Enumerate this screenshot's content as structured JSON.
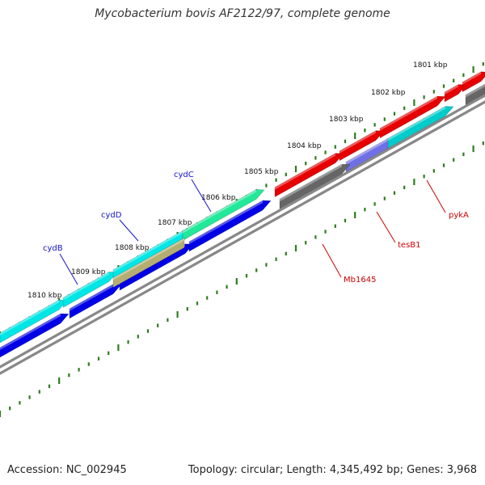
{
  "title": "Mycobacterium bovis AF2122/97, complete genome",
  "accession": "Accession: NC_002945",
  "genome_stats": "Topology: circular; Length: 4,345,492 bp; Genes: 3,968",
  "colors": {
    "backbone": "#888888",
    "tick": "#2e7d1c",
    "gene_label_forward": "#1414c8",
    "gene_label_reverse": "#cc0000",
    "kbp_label": "#111111"
  },
  "kbp_labels": [
    "1801 kbp",
    "1802 kbp",
    "1803 kbp",
    "1804 kbp",
    "1805 kbp",
    "1806 kbp",
    "1807 kbp",
    "1808 kbp",
    "1809 kbp",
    "1810 kbp"
  ],
  "gene_labels": [
    {
      "name": "cydC",
      "color": "#1414c8"
    },
    {
      "name": "cydD",
      "color": "#1414c8"
    },
    {
      "name": "cydB",
      "color": "#1414c8"
    },
    {
      "name": "pykA",
      "color": "#cc0000"
    },
    {
      "name": "tesB1",
      "color": "#cc0000"
    },
    {
      "name": "Mb1645",
      "color": "#cc0000"
    }
  ],
  "features": [
    {
      "color": "#0000e6",
      "strand": "lower"
    },
    {
      "color": "#0000e6",
      "strand": "lower"
    },
    {
      "color": "#0000e6",
      "strand": "lower"
    },
    {
      "color": "#0000e6",
      "strand": "lower"
    },
    {
      "color": "#00e6e6",
      "strand": "upper"
    },
    {
      "color": "#00e6e6",
      "strand": "upper"
    },
    {
      "color": "#00e6e6",
      "strand": "upper"
    },
    {
      "color": "#22e89a",
      "strand": "upper"
    },
    {
      "color": "#b5ae72",
      "strand": "upper"
    },
    {
      "color": "#e60000",
      "strand": "upper"
    },
    {
      "color": "#e60000",
      "strand": "upper"
    },
    {
      "color": "#e60000",
      "strand": "upper"
    },
    {
      "color": "#e60000",
      "strand": "upper"
    },
    {
      "color": "#e60000",
      "strand": "upper"
    },
    {
      "color": "#00cccc",
      "strand": "lower"
    },
    {
      "color": "#7070e6",
      "strand": "lower"
    },
    {
      "color": "#666666",
      "strand": "lower"
    },
    {
      "color": "#666666",
      "strand": "lower"
    }
  ]
}
